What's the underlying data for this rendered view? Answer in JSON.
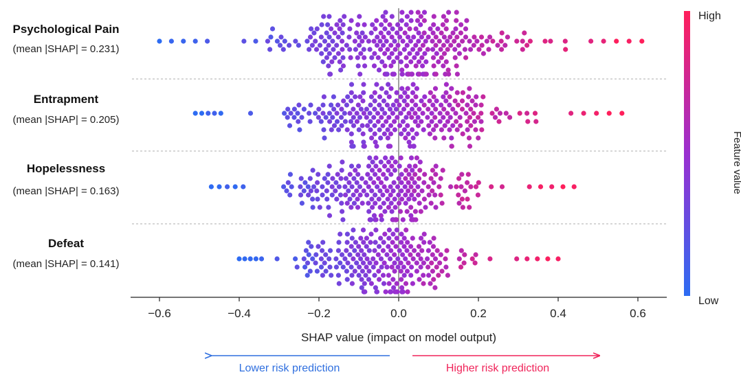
{
  "chart_data": {
    "type": "scatter",
    "subtype": "shap-beeswarm",
    "xlabel": "SHAP value (impact on model output)",
    "xlim": [
      -0.62,
      0.66
    ],
    "x_ticks": [
      "-0.6",
      "-0.4",
      "-0.2",
      "0.0",
      "0.2",
      "0.4",
      "0.6"
    ],
    "x_tick_values": [
      -0.6,
      -0.4,
      -0.2,
      0.0,
      0.2,
      0.4,
      0.6
    ],
    "zero_line": 0.0,
    "grid": false,
    "row_separators": "dotted",
    "features": [
      {
        "name": "Psychological Pain",
        "stat": "(mean |SHAP| = 0.231)",
        "min": -0.6,
        "max": 0.61,
        "min_dense": -0.45,
        "max_dense": 0.45,
        "n": 300
      },
      {
        "name": "Entrapment",
        "stat": "(mean |SHAP| = 0.205)",
        "min": -0.51,
        "max": 0.56,
        "min_dense": -0.43,
        "max_dense": 0.4,
        "n": 280
      },
      {
        "name": "Hopelessness",
        "stat": "(mean |SHAP| = 0.163)",
        "min": -0.47,
        "max": 0.44,
        "min_dense": -0.37,
        "max_dense": 0.3,
        "n": 250
      },
      {
        "name": "Defeat",
        "stat": "(mean |SHAP| = 0.141)",
        "min": -0.4,
        "max": 0.4,
        "min_dense": -0.33,
        "max_dense": 0.27,
        "n": 230
      }
    ],
    "colorbar": {
      "title": "Feature value",
      "high_label": "High",
      "low_label": "Low",
      "high_color": "#ff1f5b",
      "mid_color": "#9a2fd0",
      "low_color": "#2d6cf2"
    },
    "annotations": [
      {
        "text": "Lower risk prediction",
        "direction": "left",
        "color": "#2f6fdf"
      },
      {
        "text": "Higher risk prediction",
        "direction": "right",
        "color": "#f0245a"
      }
    ]
  }
}
